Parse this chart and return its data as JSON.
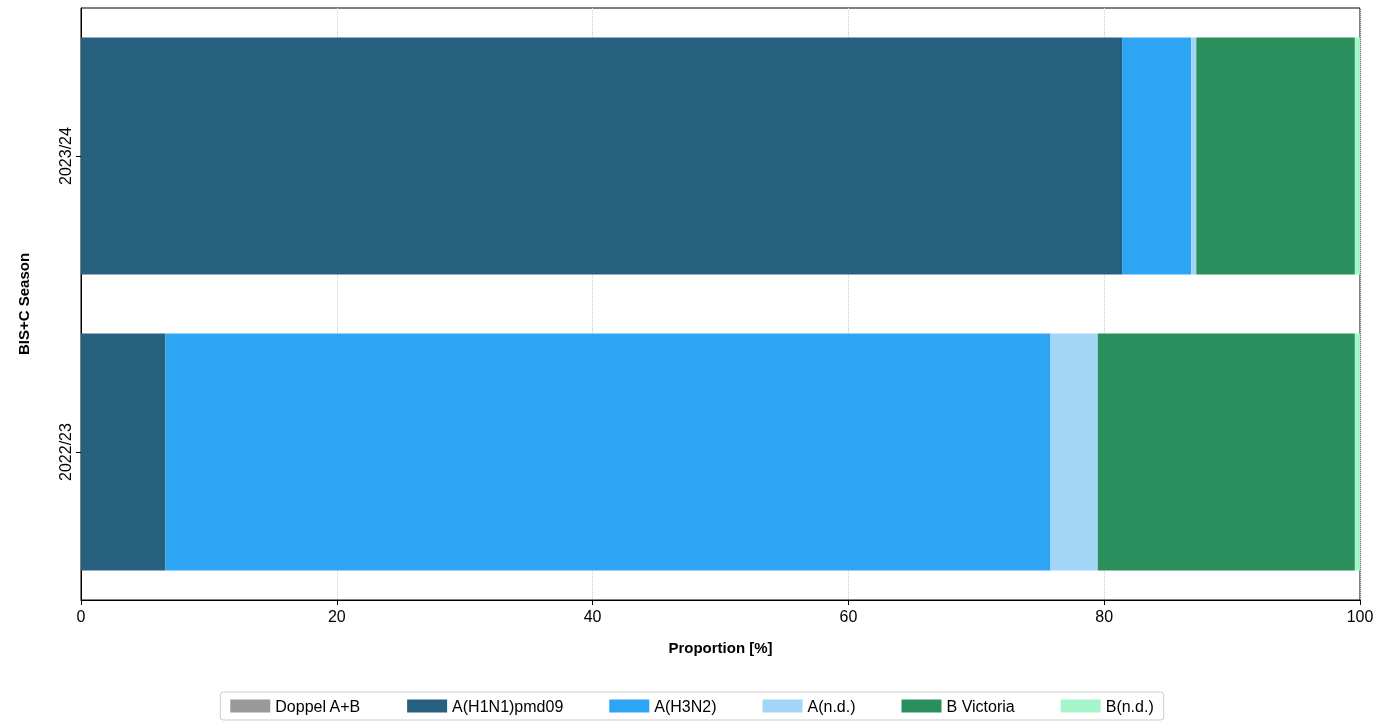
{
  "chart_data": {
    "type": "bar",
    "orientation": "horizontal",
    "stacked": true,
    "xlabel": "Proportion [%]",
    "ylabel": "BIS+C Season",
    "categories": [
      "2023/24",
      "2022/23"
    ],
    "series": [
      {
        "name": "Doppel A+B",
        "color": "#999999",
        "values": [
          0,
          0
        ]
      },
      {
        "name": "A(H1N1)pmd09",
        "color": "#27607e",
        "values": [
          81.4,
          6.6
        ]
      },
      {
        "name": "A(H3N2)",
        "color": "#2ea4f5",
        "values": [
          5.4,
          69.2
        ]
      },
      {
        "name": "A(n.d.)",
        "color": "#a3d5f7",
        "values": [
          0.4,
          3.7
        ]
      },
      {
        "name": "B Victoria",
        "color": "#2a8f5c",
        "values": [
          12.4,
          20.1
        ]
      },
      {
        "name": "B(n.d.)",
        "color": "#a5f5cb",
        "values": [
          0.4,
          0.4
        ]
      }
    ],
    "xlim": [
      0,
      100
    ],
    "xticks": [
      0,
      20,
      40,
      60,
      80,
      100
    ],
    "grid": "x",
    "legend": "bottom"
  }
}
